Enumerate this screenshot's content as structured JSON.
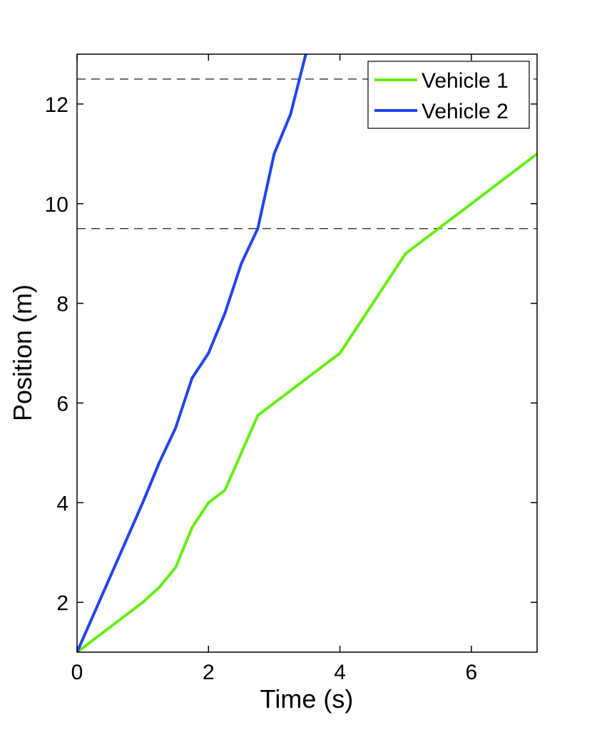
{
  "chart_data": {
    "type": "line",
    "xlabel": "Time (s)",
    "ylabel": "Position (m)",
    "xlim": [
      0,
      7
    ],
    "ylim": [
      1,
      13
    ],
    "x_ticks": [
      0,
      2,
      4,
      6
    ],
    "y_ticks": [
      2,
      4,
      6,
      8,
      10,
      12
    ],
    "x_tick_labels": [
      "0",
      "2",
      "4",
      "6"
    ],
    "y_tick_labels": [
      "2",
      "4",
      "6",
      "8",
      "10",
      "12"
    ],
    "grid": false,
    "legend_position": "top-right",
    "reference_lines": [
      {
        "y": 9.5,
        "style": "dashed",
        "color": "#333333"
      },
      {
        "y": 12.5,
        "style": "dashed",
        "color": "#333333"
      }
    ],
    "series": [
      {
        "name": "Vehicle 1",
        "color": "#66ee11",
        "points": [
          [
            0,
            1
          ],
          [
            1,
            2
          ],
          [
            1.25,
            2.3
          ],
          [
            1.5,
            2.7
          ],
          [
            1.75,
            3.5
          ],
          [
            2,
            4
          ],
          [
            2.25,
            4.25
          ],
          [
            2.5,
            5
          ],
          [
            2.75,
            5.75
          ],
          [
            4,
            7
          ],
          [
            5,
            9
          ],
          [
            6,
            10
          ],
          [
            7,
            11
          ]
        ]
      },
      {
        "name": "Vehicle 2",
        "color": "#2244ee",
        "points": [
          [
            0,
            1
          ],
          [
            1,
            4
          ],
          [
            1.25,
            4.8
          ],
          [
            1.5,
            5.5
          ],
          [
            1.75,
            6.5
          ],
          [
            2,
            7
          ],
          [
            2.25,
            7.8
          ],
          [
            2.5,
            8.8
          ],
          [
            2.75,
            9.5
          ],
          [
            3,
            11
          ],
          [
            3.25,
            11.8
          ],
          [
            3.5,
            13.1
          ]
        ]
      }
    ]
  }
}
